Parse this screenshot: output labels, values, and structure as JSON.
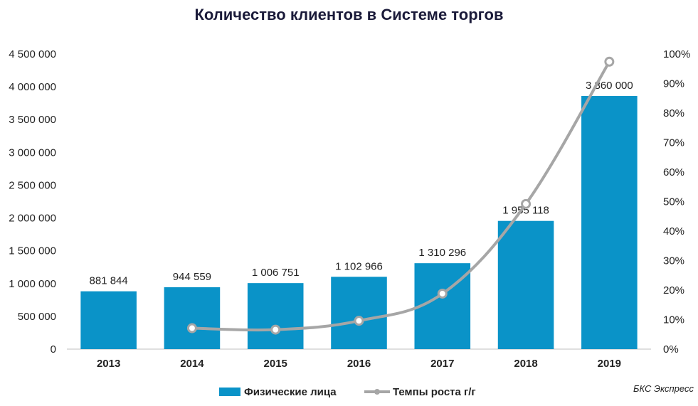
{
  "chart_data": {
    "type": "bar",
    "title": "Количество клиентов в Системе торгов",
    "categories": [
      "2013",
      "2014",
      "2015",
      "2016",
      "2017",
      "2018",
      "2019"
    ],
    "series": [
      {
        "name": "Физические лица",
        "type": "bar",
        "axis": "left",
        "color": "#0a93c8",
        "values": [
          881844,
          944559,
          1006751,
          1102966,
          1310296,
          1955118,
          3860000
        ],
        "labels": [
          "881 844",
          "944 559",
          "1 006 751",
          "1 102 966",
          "1 310 296",
          "1 955 118",
          "3 860 000"
        ]
      },
      {
        "name": "Темпы роста г/г",
        "type": "line",
        "axis": "right",
        "color": "#a6a6a6",
        "values": [
          null,
          7.1,
          6.6,
          9.6,
          18.8,
          49.2,
          97.4
        ]
      }
    ],
    "y_left": {
      "ylim": [
        0,
        4500000
      ],
      "ticks": [
        0,
        500000,
        1000000,
        1500000,
        2000000,
        2500000,
        3000000,
        3500000,
        4000000,
        4500000
      ],
      "tick_labels": [
        "0",
        "500 000",
        "1 000 000",
        "1 500 000",
        "2 000 000",
        "2 500 000",
        "3 000 000",
        "3 500 000",
        "4 000 000",
        "4 500 000"
      ]
    },
    "y_right": {
      "ylim": [
        0,
        100
      ],
      "ticks": [
        0,
        10,
        20,
        30,
        40,
        50,
        60,
        70,
        80,
        90,
        100
      ],
      "tick_labels": [
        "0%",
        "10%",
        "20%",
        "30%",
        "40%",
        "50%",
        "60%",
        "70%",
        "80%",
        "90%",
        "100%"
      ]
    },
    "grid": false,
    "legend": "bottom",
    "source": "БКС Экспресс"
  }
}
